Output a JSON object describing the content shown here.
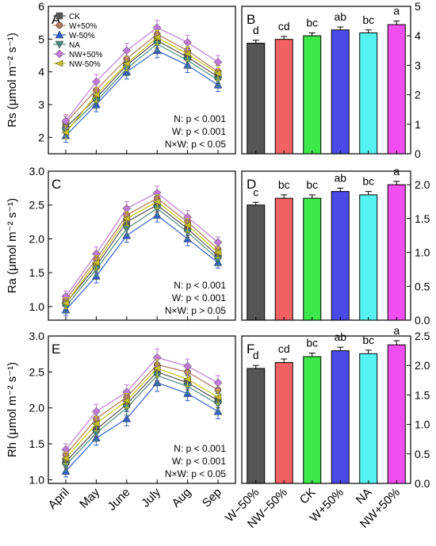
{
  "figure": {
    "x_categories": [
      "April",
      "May",
      "June",
      "July",
      "Aug",
      "Sep"
    ],
    "bar_categories": [
      "W−50%",
      "NW−50%",
      "CK",
      "W+50%",
      "NA",
      "NW+50%"
    ],
    "legend": [
      "CK",
      "W+50%",
      "W-50%",
      "NA",
      "NW+50%",
      "NW-50%"
    ],
    "colors": {
      "CK": "#555555",
      "W+50%": "#b0785a",
      "W-50%": "#2f5fc8",
      "NA": "#4c8a7e",
      "NW+50%": "#c07ad8",
      "NW-50%": "#c8c020",
      "bar_dark": "#555555",
      "bar_red": "#f26262",
      "bar_green": "#3ee84a",
      "bar_blue": "#4a4ae8",
      "bar_cyan": "#56f2f2",
      "bar_magenta": "#f04ef0"
    }
  },
  "chart_data": [
    {
      "panel": "A",
      "type": "line",
      "ylabel": "Rs (μmol m⁻² s⁻¹)",
      "ylim": [
        1.5,
        6
      ],
      "yticks": [
        2,
        3,
        4,
        5,
        6
      ],
      "x": [
        "April",
        "May",
        "June",
        "July",
        "Aug",
        "Sep"
      ],
      "series": [
        {
          "name": "CK",
          "values": [
            2.3,
            3.2,
            4.2,
            4.95,
            4.45,
            3.85
          ],
          "errors": [
            0.2,
            0.22,
            0.22,
            0.22,
            0.22,
            0.2
          ]
        },
        {
          "name": "W+50%",
          "values": [
            2.45,
            3.45,
            4.4,
            5.15,
            4.65,
            4.0
          ],
          "errors": [
            0.2,
            0.22,
            0.22,
            0.22,
            0.22,
            0.2
          ]
        },
        {
          "name": "W-50%",
          "values": [
            2.05,
            3.0,
            4.0,
            4.65,
            4.2,
            3.6
          ],
          "errors": [
            0.2,
            0.22,
            0.22,
            0.22,
            0.22,
            0.2
          ]
        },
        {
          "name": "NA",
          "values": [
            2.2,
            3.1,
            4.1,
            4.85,
            4.35,
            3.75
          ],
          "errors": [
            0.2,
            0.22,
            0.22,
            0.22,
            0.22,
            0.2
          ]
        },
        {
          "name": "NW+50%",
          "values": [
            2.5,
            3.7,
            4.65,
            5.35,
            4.9,
            4.3
          ],
          "errors": [
            0.2,
            0.22,
            0.22,
            0.22,
            0.22,
            0.2
          ]
        },
        {
          "name": "NW-50%",
          "values": [
            2.15,
            3.3,
            4.25,
            5.05,
            4.55,
            3.95
          ],
          "errors": [
            0.2,
            0.22,
            0.22,
            0.22,
            0.22,
            0.2
          ]
        }
      ],
      "stats": [
        "N: p < 0.001",
        "W: p < 0.001",
        "N×W: p < 0.05"
      ]
    },
    {
      "panel": "B",
      "type": "bar",
      "ylim": [
        0,
        5
      ],
      "yticks": [
        0,
        1,
        2,
        3,
        4,
        5
      ],
      "categories": [
        "W−50%",
        "NW−50%",
        "CK",
        "W+50%",
        "NA",
        "NW+50%"
      ],
      "values": [
        3.75,
        3.88,
        4.0,
        4.2,
        4.1,
        4.38
      ],
      "errors": [
        0.1,
        0.1,
        0.1,
        0.1,
        0.1,
        0.12
      ],
      "letters": [
        "d",
        "cd",
        "bc",
        "ab",
        "bc",
        "a"
      ]
    },
    {
      "panel": "C",
      "type": "line",
      "ylabel": "Ra (μmol m⁻² s⁻¹)",
      "ylim": [
        0.8,
        3.0
      ],
      "yticks": [
        1.0,
        1.5,
        2.0,
        2.5,
        3.0
      ],
      "x": [
        "April",
        "May",
        "June",
        "July",
        "Aug",
        "Sep"
      ],
      "series": [
        {
          "name": "CK",
          "values": [
            1.05,
            1.6,
            2.25,
            2.5,
            2.15,
            1.75
          ],
          "errors": [
            0.08,
            0.1,
            0.1,
            0.1,
            0.1,
            0.08
          ]
        },
        {
          "name": "W+50%",
          "values": [
            1.1,
            1.7,
            2.35,
            2.6,
            2.25,
            1.85
          ],
          "errors": [
            0.08,
            0.1,
            0.1,
            0.1,
            0.1,
            0.08
          ]
        },
        {
          "name": "W-50%",
          "values": [
            0.95,
            1.45,
            2.05,
            2.35,
            2.0,
            1.65
          ],
          "errors": [
            0.08,
            0.1,
            0.1,
            0.1,
            0.1,
            0.08
          ]
        },
        {
          "name": "NA",
          "values": [
            1.0,
            1.55,
            2.15,
            2.45,
            2.1,
            1.7
          ],
          "errors": [
            0.08,
            0.1,
            0.1,
            0.1,
            0.1,
            0.08
          ]
        },
        {
          "name": "NW+50%",
          "values": [
            1.15,
            1.78,
            2.45,
            2.68,
            2.32,
            1.95
          ],
          "errors": [
            0.08,
            0.1,
            0.1,
            0.1,
            0.1,
            0.08
          ]
        },
        {
          "name": "NW-50%",
          "values": [
            1.05,
            1.65,
            2.3,
            2.55,
            2.2,
            1.8
          ],
          "errors": [
            0.08,
            0.1,
            0.1,
            0.1,
            0.1,
            0.08
          ]
        }
      ],
      "stats": [
        "N: p < 0.001",
        "W: p < 0.001",
        "N×W: p > 0.05"
      ]
    },
    {
      "panel": "D",
      "type": "bar",
      "ylim": [
        0,
        2.2
      ],
      "yticks": [
        0.0,
        0.5,
        1.0,
        1.5,
        2.0
      ],
      "categories": [
        "W−50%",
        "NW−50%",
        "CK",
        "W+50%",
        "NA",
        "NW+50%"
      ],
      "values": [
        1.7,
        1.8,
        1.8,
        1.9,
        1.85,
        2.0
      ],
      "errors": [
        0.04,
        0.05,
        0.05,
        0.05,
        0.05,
        0.05
      ],
      "letters": [
        "c",
        "bc",
        "bc",
        "ab",
        "bc",
        "a"
      ]
    },
    {
      "panel": "E",
      "type": "line",
      "ylabel": "Rh (μmol m⁻² s⁻¹)",
      "ylim": [
        0.95,
        3.0
      ],
      "yticks": [
        1.0,
        1.5,
        2.0,
        2.5,
        3.0
      ],
      "x": [
        "April",
        "May",
        "June",
        "July",
        "Aug",
        "Sep"
      ],
      "series": [
        {
          "name": "CK",
          "values": [
            1.25,
            1.7,
            2.05,
            2.5,
            2.35,
            2.1
          ],
          "errors": [
            0.08,
            0.1,
            0.1,
            0.12,
            0.1,
            0.1
          ]
        },
        {
          "name": "W+50%",
          "values": [
            1.35,
            1.85,
            2.15,
            2.6,
            2.5,
            2.25
          ],
          "errors": [
            0.08,
            0.1,
            0.1,
            0.12,
            0.1,
            0.1
          ]
        },
        {
          "name": "W-50%",
          "values": [
            1.12,
            1.58,
            1.85,
            2.35,
            2.2,
            1.95
          ],
          "errors": [
            0.08,
            0.1,
            0.1,
            0.12,
            0.1,
            0.1
          ]
        },
        {
          "name": "NA",
          "values": [
            1.2,
            1.65,
            2.0,
            2.45,
            2.3,
            2.05
          ],
          "errors": [
            0.08,
            0.1,
            0.1,
            0.12,
            0.1,
            0.1
          ]
        },
        {
          "name": "NW+50%",
          "values": [
            1.42,
            1.95,
            2.22,
            2.7,
            2.58,
            2.35
          ],
          "errors": [
            0.08,
            0.1,
            0.1,
            0.12,
            0.1,
            0.1
          ]
        },
        {
          "name": "NW-50%",
          "values": [
            1.3,
            1.78,
            2.1,
            2.55,
            2.4,
            2.15
          ],
          "errors": [
            0.08,
            0.1,
            0.1,
            0.12,
            0.1,
            0.1
          ]
        }
      ],
      "stats": [
        "N: p < 0.001",
        "W: p < 0.001",
        "N×W: p < 0.05"
      ]
    },
    {
      "panel": "F",
      "type": "bar",
      "ylim": [
        0,
        2.5
      ],
      "yticks": [
        0.0,
        0.5,
        1.0,
        1.5,
        2.0,
        2.5
      ],
      "categories": [
        "W−50%",
        "NW−50%",
        "CK",
        "W+50%",
        "NA",
        "NW+50%"
      ],
      "values": [
        1.95,
        2.05,
        2.15,
        2.25,
        2.2,
        2.35
      ],
      "errors": [
        0.05,
        0.06,
        0.06,
        0.06,
        0.06,
        0.07
      ],
      "letters": [
        "d",
        "cd",
        "bc",
        "ab",
        "bc",
        "a"
      ]
    }
  ]
}
